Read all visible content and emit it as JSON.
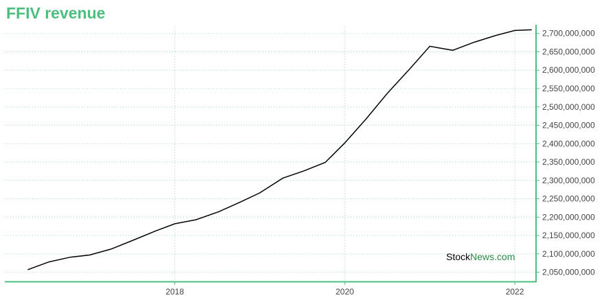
{
  "title": "FFIV revenue",
  "watermark": {
    "part1": "Stock",
    "part2": "News",
    "part3": ".com"
  },
  "colors": {
    "title": "#4cbf7f",
    "axis": "#4cbf7f",
    "grid": "#9fd9bd",
    "line": "#000000",
    "watermark_dark": "#000000",
    "watermark_green": "#2a8a47"
  },
  "chart_data": {
    "type": "line",
    "title": "FFIV revenue",
    "xlabel": "",
    "ylabel": "",
    "x_ticks": [
      {
        "x": 2018,
        "label": "2018"
      },
      {
        "x": 2020,
        "label": "2020"
      },
      {
        "x": 2022,
        "label": "2022"
      }
    ],
    "y_ticks": [
      2050000000,
      2100000000,
      2150000000,
      2200000000,
      2250000000,
      2300000000,
      2350000000,
      2400000000,
      2450000000,
      2500000000,
      2550000000,
      2600000000,
      2650000000,
      2700000000
    ],
    "y_tick_labels": [
      "2,050,000,000",
      "2,100,000,000",
      "2,150,000,000",
      "2,200,000,000",
      "2,250,000,000",
      "2,300,000,000",
      "2,350,000,000",
      "2,400,000,000",
      "2,450,000,000",
      "2,500,000,000",
      "2,550,000,000",
      "2,600,000,000",
      "2,650,000,000",
      "2,700,000,000"
    ],
    "xlim": [
      2016.0,
      2022.25
    ],
    "ylim": [
      2025000000,
      2720000000
    ],
    "grid": true,
    "y_axis_side": "right",
    "series": [
      {
        "x": [
          2016.27,
          2016.52,
          2016.77,
          2017.0,
          2017.25,
          2017.52,
          2017.77,
          2018.0,
          2018.25,
          2018.52,
          2018.77,
          2019.0,
          2019.27,
          2019.52,
          2019.77,
          2020.0,
          2020.25,
          2020.5,
          2020.77,
          2021.0,
          2021.27,
          2021.52,
          2021.77,
          2022.0,
          2022.2
        ],
        "y": [
          2057000000,
          2078000000,
          2091000000,
          2097000000,
          2113000000,
          2138000000,
          2162000000,
          2182000000,
          2193000000,
          2215000000,
          2241000000,
          2266000000,
          2306000000,
          2326000000,
          2349000000,
          2402000000,
          2467000000,
          2537000000,
          2605000000,
          2665000000,
          2654000000,
          2676000000,
          2694000000,
          2708000000,
          2710000000
        ]
      }
    ]
  }
}
